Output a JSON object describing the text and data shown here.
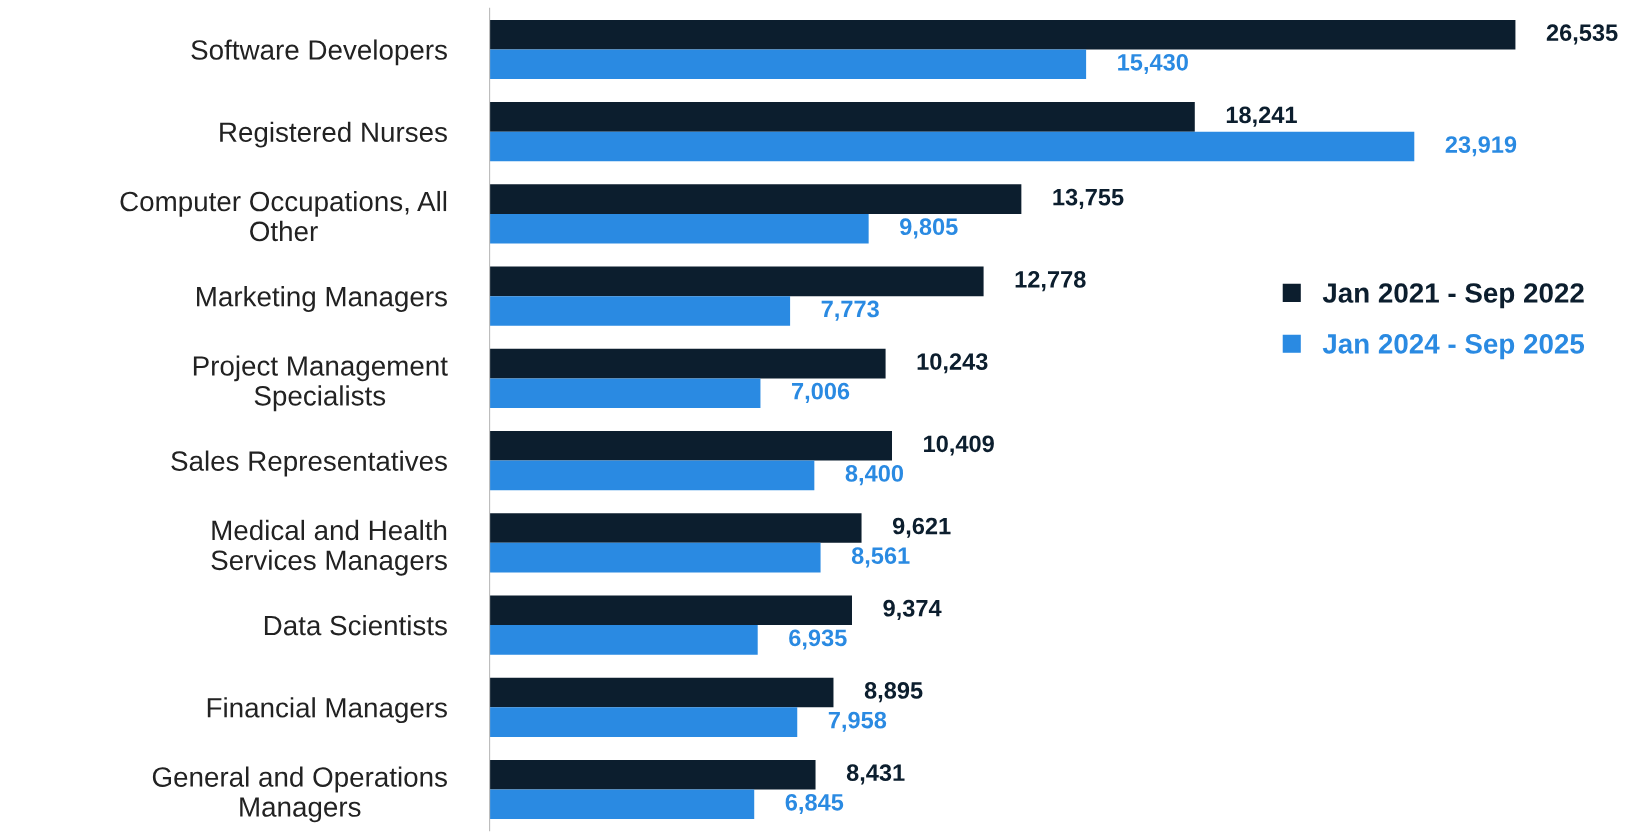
{
  "chart_data": {
    "type": "bar",
    "orientation": "horizontal",
    "categories": [
      "Software Developers",
      "Registered Nurses",
      "Computer Occupations, All Other",
      "Marketing Managers",
      "Project Management Specialists",
      "Sales Representatives",
      "Medical and Health Services Managers",
      "Data Scientists",
      "Financial Managers",
      "General and Operations Managers"
    ],
    "series": [
      {
        "name": "Jan 2021 - Sep 2022",
        "color": "#0c1e2e",
        "values": [
          26535,
          18241,
          13755,
          12778,
          10243,
          10409,
          9621,
          9374,
          8895,
          8431
        ],
        "value_labels": [
          "26,535",
          "18,241",
          "13,755",
          "12,778",
          "10,243",
          "10,409",
          "9,621",
          "9,374",
          "8,895",
          "8,431"
        ]
      },
      {
        "name": "Jan 2024 - Sep 2025",
        "color": "#2a8ae2",
        "values": [
          15430,
          23919,
          9805,
          7773,
          7006,
          8400,
          8561,
          6935,
          7958,
          6845
        ],
        "value_labels": [
          "15,430",
          "23,919",
          "9,805",
          "7,773",
          "7,006",
          "8,400",
          "8,561",
          "6,935",
          "7,958",
          "6,845"
        ]
      }
    ],
    "legend": "right",
    "grid": false,
    "tick_labels": "y"
  }
}
